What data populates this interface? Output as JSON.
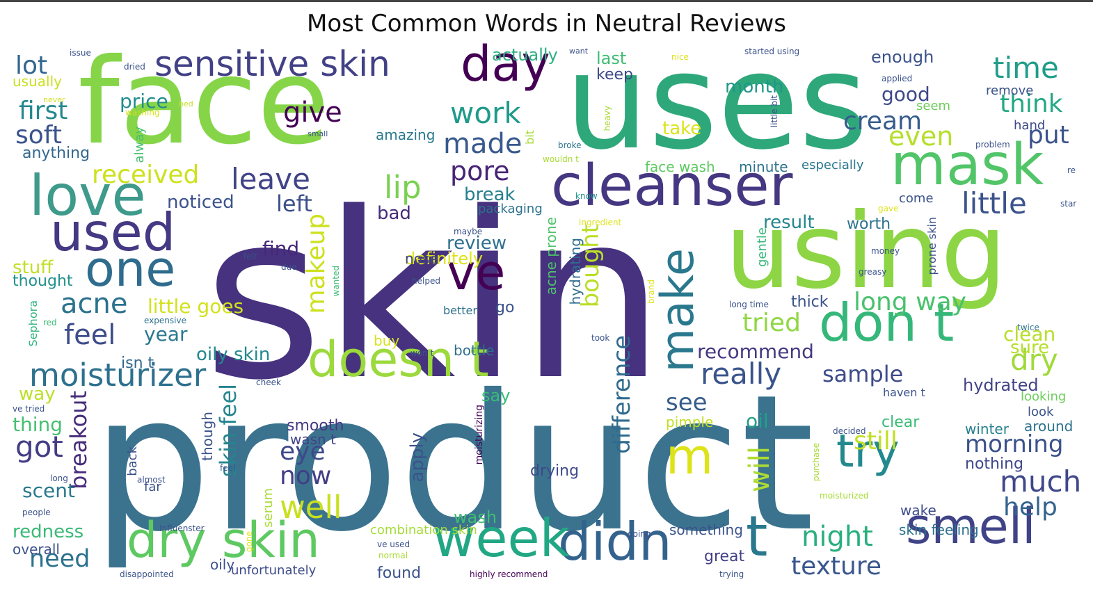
{
  "chart_data": {
    "type": "wordcloud",
    "title": "Most Common Words in Neutral Reviews",
    "colormap": "viridis",
    "words": [
      {
        "text": "skin",
        "color": "#46327e"
      },
      {
        "text": "product",
        "color": "#3b738f"
      },
      {
        "text": "face",
        "color": "#86d549"
      },
      {
        "text": "uses",
        "color": "#2ea87a"
      },
      {
        "text": "using",
        "color": "#8dd544"
      },
      {
        "text": "cleanser",
        "color": "#453781"
      },
      {
        "text": "mask",
        "color": "#52c569"
      },
      {
        "text": "love",
        "color": "#3e9a8b"
      },
      {
        "text": "used",
        "color": "#443983"
      },
      {
        "text": "day",
        "color": "#440154"
      },
      {
        "text": "one",
        "color": "#2f6c8e"
      },
      {
        "text": "ve",
        "color": "#440154"
      },
      {
        "text": "doesn t",
        "color": "#9bd93c"
      },
      {
        "text": "don t",
        "color": "#35b779"
      },
      {
        "text": "make",
        "color": "#2a788e"
      },
      {
        "text": "didn",
        "color": "#33638d"
      },
      {
        "text": "t",
        "color": "#2a788e"
      },
      {
        "text": "week",
        "color": "#22a785"
      },
      {
        "text": "dry skin",
        "color": "#5ec962"
      },
      {
        "text": "smell",
        "color": "#404387"
      },
      {
        "text": "try",
        "color": "#23898e"
      },
      {
        "text": "m",
        "color": "#dde318"
      },
      {
        "text": "sensitive skin",
        "color": "#424186"
      },
      {
        "text": "really",
        "color": "#3a548c"
      },
      {
        "text": "moisturizer",
        "color": "#2d708e"
      },
      {
        "text": "time",
        "color": "#1f9e89"
      },
      {
        "text": "little",
        "color": "#3b528b"
      },
      {
        "text": "work",
        "color": "#1f9a8a"
      },
      {
        "text": "made",
        "color": "#38598c"
      },
      {
        "text": "feel",
        "color": "#3d4d8a"
      },
      {
        "text": "acne",
        "color": "#2c728e"
      },
      {
        "text": "leave",
        "color": "#414487"
      },
      {
        "text": "lip",
        "color": "#7ad151"
      },
      {
        "text": "pore",
        "color": "#482475"
      },
      {
        "text": "give",
        "color": "#440154"
      },
      {
        "text": "cream",
        "color": "#365c8d"
      },
      {
        "text": "even",
        "color": "#b5de2b"
      },
      {
        "text": "put",
        "color": "#3b528b"
      },
      {
        "text": "think",
        "color": "#22a884"
      },
      {
        "text": "dry",
        "color": "#a0da39"
      },
      {
        "text": "long way",
        "color": "#4ac16d"
      },
      {
        "text": "tried",
        "color": "#8fd744"
      },
      {
        "text": "sample",
        "color": "#3e4c8a"
      },
      {
        "text": "makeup",
        "color": "#cde11d"
      },
      {
        "text": "bought",
        "color": "#bade28"
      },
      {
        "text": "difference",
        "color": "#2f6b8e"
      },
      {
        "text": "skin feel",
        "color": "#25858e"
      },
      {
        "text": "breakout",
        "color": "#472c7a"
      },
      {
        "text": "got",
        "color": "#433e85"
      },
      {
        "text": "well",
        "color": "#c8e020"
      },
      {
        "text": "eye",
        "color": "#3e4989"
      },
      {
        "text": "now",
        "color": "#433e85"
      },
      {
        "text": "will",
        "color": "#addc30"
      },
      {
        "text": "night",
        "color": "#29af7f"
      },
      {
        "text": "texture",
        "color": "#39568c"
      },
      {
        "text": "much",
        "color": "#3f4889"
      },
      {
        "text": "help",
        "color": "#33638d"
      },
      {
        "text": "morning",
        "color": "#3b528b"
      },
      {
        "text": "still",
        "color": "#c2df23"
      },
      {
        "text": "oil",
        "color": "#1fa187"
      },
      {
        "text": "see",
        "color": "#365d8d"
      },
      {
        "text": "need",
        "color": "#2c718e"
      },
      {
        "text": "received",
        "color": "#cde11d"
      },
      {
        "text": "first",
        "color": "#24878e"
      },
      {
        "text": "soft",
        "color": "#3b528b"
      },
      {
        "text": "lot",
        "color": "#31668e"
      },
      {
        "text": "price",
        "color": "#228c8d"
      },
      {
        "text": "noticed",
        "color": "#3b528b"
      },
      {
        "text": "left",
        "color": "#3c4f8a"
      },
      {
        "text": "find",
        "color": "#482878"
      },
      {
        "text": "review",
        "color": "#2d708e"
      },
      {
        "text": "break",
        "color": "#277f8e"
      },
      {
        "text": "bad",
        "color": "#472c7a"
      },
      {
        "text": "definitely",
        "color": "#dde318"
      },
      {
        "text": "month",
        "color": "#1f968b"
      },
      {
        "text": "good",
        "color": "#3e4989"
      },
      {
        "text": "enough",
        "color": "#3b528b"
      },
      {
        "text": "actually",
        "color": "#2ab07f"
      },
      {
        "text": "last",
        "color": "#3fbc73"
      },
      {
        "text": "keep",
        "color": "#3e4989"
      },
      {
        "text": "take",
        "color": "#dae319"
      },
      {
        "text": "result",
        "color": "#24868e"
      },
      {
        "text": "worth",
        "color": "#2c718e"
      },
      {
        "text": "come",
        "color": "#3b528b"
      },
      {
        "text": "clean",
        "color": "#b8de29"
      },
      {
        "text": "sure",
        "color": "#b5de2b"
      },
      {
        "text": "hydrated",
        "color": "#404387"
      },
      {
        "text": "recommend",
        "color": "#453882"
      },
      {
        "text": "year",
        "color": "#2a788e"
      },
      {
        "text": "little goes",
        "color": "#d2e21b"
      },
      {
        "text": "oily skin",
        "color": "#23898e"
      },
      {
        "text": "isn t",
        "color": "#31688e"
      },
      {
        "text": "way",
        "color": "#bddf26"
      },
      {
        "text": "thing",
        "color": "#46c06f"
      },
      {
        "text": "scent",
        "color": "#2a788e"
      },
      {
        "text": "redness",
        "color": "#3aba76"
      },
      {
        "text": "overall",
        "color": "#3b528b"
      },
      {
        "text": "stuff",
        "color": "#c0df25"
      },
      {
        "text": "thought",
        "color": "#21918c"
      },
      {
        "text": "anything",
        "color": "#31668e"
      },
      {
        "text": "usually",
        "color": "#cae11f"
      },
      {
        "text": "nose",
        "color": "#414487"
      },
      {
        "text": "hydrating",
        "color": "#2e6f8e"
      },
      {
        "text": "acne prone",
        "color": "#4ec36b"
      },
      {
        "text": "thick",
        "color": "#3b528b"
      },
      {
        "text": "bottle",
        "color": "#2d708e"
      },
      {
        "text": "go",
        "color": "#3b528b"
      },
      {
        "text": "buy",
        "color": "#d8e219"
      },
      {
        "text": "smooth",
        "color": "#453882"
      },
      {
        "text": "wasn t",
        "color": "#404387"
      },
      {
        "text": "apply",
        "color": "#3b528b"
      },
      {
        "text": "say",
        "color": "#3aba76"
      },
      {
        "text": "wash",
        "color": "#40bd72"
      },
      {
        "text": "drying",
        "color": "#3e4a89"
      },
      {
        "text": "pimple",
        "color": "#c2df23"
      },
      {
        "text": "clear",
        "color": "#3aba76"
      },
      {
        "text": "winter",
        "color": "#26818e"
      },
      {
        "text": "around",
        "color": "#2c728e"
      },
      {
        "text": "look",
        "color": "#3b528b"
      },
      {
        "text": "looking",
        "color": "#6ccd5a"
      },
      {
        "text": "nothing",
        "color": "#3f4889"
      },
      {
        "text": "wake",
        "color": "#3e4c8a"
      },
      {
        "text": "skin feeling",
        "color": "#2c728e"
      },
      {
        "text": "something",
        "color": "#3b528b"
      },
      {
        "text": "great",
        "color": "#424086"
      },
      {
        "text": "found",
        "color": "#3b528b"
      },
      {
        "text": "unfortunately",
        "color": "#3e4c8a"
      },
      {
        "text": "combination skin",
        "color": "#a5db36"
      },
      {
        "text": "face wash",
        "color": "#5ec962"
      },
      {
        "text": "minute",
        "color": "#2c728e"
      },
      {
        "text": "especially",
        "color": "#2a788e"
      },
      {
        "text": "packaging",
        "color": "#2c728e"
      },
      {
        "text": "amazing",
        "color": "#2a788e"
      },
      {
        "text": "remove",
        "color": "#3b528b"
      },
      {
        "text": "hand",
        "color": "#3e4989"
      },
      {
        "text": "seem",
        "color": "#6ccd5a"
      },
      {
        "text": "oily",
        "color": "#3b528b"
      },
      {
        "text": "better",
        "color": "#2d708e"
      },
      {
        "text": "far",
        "color": "#3b528b"
      },
      {
        "text": "back",
        "color": "#3b528b"
      },
      {
        "text": "though",
        "color": "#3b528b"
      },
      {
        "text": "moisturizing",
        "color": "#440154"
      },
      {
        "text": "bit",
        "color": "#a8db34"
      },
      {
        "text": "alway",
        "color": "#46c06f"
      },
      {
        "text": "serum",
        "color": "#a8db34"
      },
      {
        "text": "gentle",
        "color": "#35b779"
      },
      {
        "text": "prone skin",
        "color": "#3b528b"
      },
      {
        "text": "Sephora",
        "color": "#2db27d"
      },
      {
        "text": "issue",
        "color": "#3b528b"
      },
      {
        "text": "dried",
        "color": "#3b528b"
      },
      {
        "text": "never",
        "color": "#d0e11c"
      },
      {
        "text": "washing",
        "color": "#d8e219"
      },
      {
        "text": "bed",
        "color": "#c2df23"
      },
      {
        "text": "small",
        "color": "#3b528b"
      },
      {
        "text": "want",
        "color": "#3b528b"
      },
      {
        "text": "nice",
        "color": "#dde318"
      },
      {
        "text": "started using",
        "color": "#3b528b"
      },
      {
        "text": "applied",
        "color": "#3b528b"
      },
      {
        "text": "heavy",
        "color": "#a8db34"
      },
      {
        "text": "little bit",
        "color": "#3b528b"
      },
      {
        "text": "problem",
        "color": "#3b528b"
      },
      {
        "text": "re",
        "color": "#3b528b"
      },
      {
        "text": "broke",
        "color": "#2c728e"
      },
      {
        "text": "wouldn t",
        "color": "#a8db34"
      },
      {
        "text": "know",
        "color": "#21918c"
      },
      {
        "text": "ingredient",
        "color": "#dde318"
      },
      {
        "text": "gave",
        "color": "#dde318"
      },
      {
        "text": "star",
        "color": "#3b528b"
      },
      {
        "text": "maybe",
        "color": "#3b528b"
      },
      {
        "text": "felt",
        "color": "#3b528b"
      },
      {
        "text": "due",
        "color": "#3b528b"
      },
      {
        "text": "helped",
        "color": "#3b528b"
      },
      {
        "text": "wanted",
        "color": "#3aba76"
      },
      {
        "text": "money",
        "color": "#3b528b"
      },
      {
        "text": "greasy",
        "color": "#3b528b"
      },
      {
        "text": "brand",
        "color": "#dde318"
      },
      {
        "text": "long time",
        "color": "#3b528b"
      },
      {
        "text": "twice",
        "color": "#2c728e"
      },
      {
        "text": "took",
        "color": "#3b528b"
      },
      {
        "text": "red",
        "color": "#3aba76"
      },
      {
        "text": "expensive",
        "color": "#2c728e"
      },
      {
        "text": "won t",
        "color": "#3b528b"
      },
      {
        "text": "cheek",
        "color": "#3b528b"
      },
      {
        "text": "ve tried",
        "color": "#3b528b"
      },
      {
        "text": "long",
        "color": "#3b528b"
      },
      {
        "text": "almost",
        "color": "#3b528b"
      },
      {
        "text": "feel",
        "color": "#3b528b"
      },
      {
        "text": "people",
        "color": "#3b528b"
      },
      {
        "text": "Influenster",
        "color": "#3b528b"
      },
      {
        "text": "gone",
        "color": "#dde318"
      },
      {
        "text": "ve used",
        "color": "#3b528b"
      },
      {
        "text": "normal",
        "color": "#a8db34"
      },
      {
        "text": "disappointed",
        "color": "#3b528b"
      },
      {
        "text": "highly recommend",
        "color": "#440154"
      },
      {
        "text": "trying",
        "color": "#3b528b"
      },
      {
        "text": "going",
        "color": "#3b528b"
      },
      {
        "text": "decided",
        "color": "#3b528b"
      },
      {
        "text": "purchase",
        "color": "#a8db34"
      },
      {
        "text": "moisturized",
        "color": "#a8db34"
      },
      {
        "text": "haven t",
        "color": "#3b528b"
      }
    ]
  }
}
